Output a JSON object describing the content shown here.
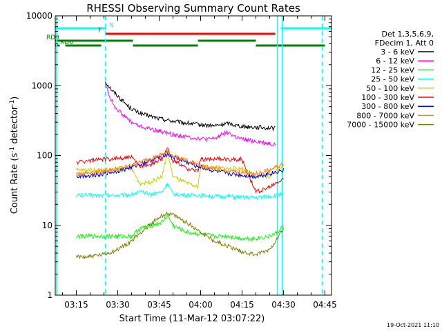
{
  "chart_data": {
    "type": "line",
    "title": "RHESSI Observing Summary Count Rates",
    "xlabel": "Start Time (11-Mar-12 03:07:22)",
    "ylabel": "Count Rate (s⁻¹ detector⁻¹)",
    "ylabel_parts": {
      "main": "Count Rate (s",
      "exp1": "-1",
      "mid": " detector",
      "exp2": "-1",
      "end": ")"
    },
    "y_scale": "log",
    "xlim": [
      "03:07:22",
      "04:47:22"
    ],
    "ylim": [
      1,
      10000
    ],
    "x_ticks": [
      "03:15",
      "03:30",
      "03:45",
      "04:00",
      "04:15",
      "04:30",
      "04:45"
    ],
    "y_ticks": [
      "1",
      "10",
      "100",
      "1000",
      "10000"
    ],
    "legend_header": [
      "Det 1,3,5,6,9,",
      "FDecim 1, Att 0"
    ],
    "legend_position": "right",
    "timestamp": "19-Oct-2021 11:10",
    "flag_labels": [
      "N",
      "F",
      "RD0",
      "RD6"
    ],
    "flags": [
      {
        "label": "N",
        "color": "#00ffff",
        "segments": [
          [
            "03:07:22",
            "03:25:50"
          ],
          [
            "04:29:00",
            "04:47:22"
          ]
        ]
      },
      {
        "label": "F",
        "color": "#ff0000",
        "segments": [
          [
            "03:25:30",
            "04:27:00"
          ]
        ]
      },
      {
        "label": "RD0",
        "color": "#008000",
        "segments": [
          [
            "03:07:22",
            "03:35:30"
          ],
          [
            "03:59:00",
            "04:20:00"
          ]
        ]
      },
      {
        "label": "RD6",
        "color": "#008000",
        "segments": [
          [
            "03:07:22",
            "03:09:00"
          ],
          [
            "03:11:00",
            "03:24:00"
          ],
          [
            "03:35:30",
            "03:59:00"
          ],
          [
            "04:20:00",
            "04:45:00"
          ]
        ]
      }
    ],
    "vlines": [
      {
        "x": "03:07:50",
        "color": "#00ffff",
        "style": "solid"
      },
      {
        "x": "03:25:30",
        "color": "#00ffff",
        "style": "dashed"
      },
      {
        "x": "04:27:45",
        "color": "#00ffff",
        "style": "solid"
      },
      {
        "x": "04:29:30",
        "color": "#00ffff",
        "style": "solid"
      },
      {
        "x": "04:44:00",
        "color": "#00ffff",
        "style": "dashed"
      }
    ],
    "series": [
      {
        "name": "3 - 6 keV",
        "color": "#000000",
        "points": [
          [
            "03:25:30",
            1150
          ],
          [
            "03:28:00",
            850
          ],
          [
            "03:31:00",
            650
          ],
          [
            "03:34:00",
            500
          ],
          [
            "03:37:00",
            420
          ],
          [
            "03:40:00",
            380
          ],
          [
            "03:45:00",
            340
          ],
          [
            "03:50:00",
            310
          ],
          [
            "03:55:00",
            290
          ],
          [
            "04:00:00",
            275
          ],
          [
            "04:05:00",
            265
          ],
          [
            "04:08:00",
            280
          ],
          [
            "04:10:00",
            290
          ],
          [
            "04:13:00",
            270
          ],
          [
            "04:16:00",
            260
          ],
          [
            "04:20:00",
            255
          ],
          [
            "04:24:00",
            250
          ],
          [
            "04:27:00",
            245
          ]
        ]
      },
      {
        "name": "6 - 12 keV",
        "color": "#ff00ff",
        "points": [
          [
            "03:25:30",
            1100
          ],
          [
            "03:27:00",
            700
          ],
          [
            "03:29:00",
            500
          ],
          [
            "03:32:00",
            380
          ],
          [
            "03:35:00",
            300
          ],
          [
            "03:38:00",
            260
          ],
          [
            "03:42:00",
            240
          ],
          [
            "03:46:00",
            220
          ],
          [
            "03:50:00",
            200
          ],
          [
            "03:55:00",
            185
          ],
          [
            "04:00:00",
            175
          ],
          [
            "04:03:00",
            170
          ],
          [
            "04:06:00",
            180
          ],
          [
            "04:08:00",
            210
          ],
          [
            "04:10:00",
            215
          ],
          [
            "04:12:00",
            190
          ],
          [
            "04:15:00",
            170
          ],
          [
            "04:20:00",
            160
          ],
          [
            "04:24:00",
            150
          ],
          [
            "04:27:00",
            145
          ]
        ]
      },
      {
        "name": "12 - 25 keV",
        "color": "#00ff00",
        "points": [
          [
            "03:15:00",
            7
          ],
          [
            "03:20:00",
            7
          ],
          [
            "03:25:00",
            7
          ],
          [
            "03:30:00",
            7
          ],
          [
            "03:35:00",
            7
          ],
          [
            "03:38:00",
            9
          ],
          [
            "03:42:00",
            10
          ],
          [
            "03:46:00",
            11
          ],
          [
            "03:48:00",
            14
          ],
          [
            "03:50:00",
            10
          ],
          [
            "03:55:00",
            8
          ],
          [
            "04:00:00",
            7.5
          ],
          [
            "04:05:00",
            7
          ],
          [
            "04:10:00",
            7
          ],
          [
            "04:15:00",
            6.5
          ],
          [
            "04:20:00",
            6.5
          ],
          [
            "04:25:00",
            7
          ],
          [
            "04:28:00",
            8
          ],
          [
            "04:30:00",
            10
          ]
        ]
      },
      {
        "name": "25 - 50 keV",
        "color": "#00ffff",
        "points": [
          [
            "03:15:00",
            27
          ],
          [
            "03:20:00",
            27
          ],
          [
            "03:25:00",
            27
          ],
          [
            "03:30:00",
            27
          ],
          [
            "03:35:00",
            28
          ],
          [
            "03:38:00",
            30
          ],
          [
            "03:42:00",
            28
          ],
          [
            "03:46:00",
            30
          ],
          [
            "03:48:00",
            40
          ],
          [
            "03:50:00",
            28
          ],
          [
            "03:55:00",
            27
          ],
          [
            "04:00:00",
            27
          ],
          [
            "04:05:00",
            26
          ],
          [
            "04:10:00",
            26
          ],
          [
            "04:15:00",
            25
          ],
          [
            "04:20:00",
            25
          ],
          [
            "04:25:00",
            26
          ],
          [
            "04:30:00",
            28
          ]
        ]
      },
      {
        "name": "50 - 100 keV",
        "color": "#cccc00",
        "points": [
          [
            "03:15:00",
            62
          ],
          [
            "03:20:00",
            62
          ],
          [
            "03:25:00",
            62
          ],
          [
            "03:30:00",
            63
          ],
          [
            "03:35:00",
            64
          ],
          [
            "03:38:00",
            40
          ],
          [
            "03:42:00",
            42
          ],
          [
            "03:46:00",
            50
          ],
          [
            "03:48:00",
            110
          ],
          [
            "03:50:00",
            50
          ],
          [
            "03:55:00",
            40
          ],
          [
            "03:59:00",
            35
          ],
          [
            "04:00:00",
            70
          ],
          [
            "04:05:00",
            68
          ],
          [
            "04:10:00",
            65
          ],
          [
            "04:15:00",
            65
          ],
          [
            "04:20:00",
            50
          ],
          [
            "04:25:00",
            50
          ],
          [
            "04:30:00",
            75
          ]
        ]
      },
      {
        "name": "100 - 300 keV",
        "color": "#ff0000",
        "points": [
          [
            "03:15:00",
            80
          ],
          [
            "03:20:00",
            85
          ],
          [
            "03:25:00",
            88
          ],
          [
            "03:30:00",
            92
          ],
          [
            "03:35:00",
            95
          ],
          [
            "03:38:00",
            70
          ],
          [
            "03:42:00",
            75
          ],
          [
            "03:46:00",
            90
          ],
          [
            "03:48:00",
            125
          ],
          [
            "03:50:00",
            85
          ],
          [
            "03:55:00",
            65
          ],
          [
            "03:59:00",
            60
          ],
          [
            "04:00:00",
            88
          ],
          [
            "04:05:00",
            90
          ],
          [
            "04:10:00",
            88
          ],
          [
            "04:15:00",
            88
          ],
          [
            "04:20:00",
            30
          ],
          [
            "04:25:00",
            35
          ],
          [
            "04:27:00",
            40
          ],
          [
            "04:30:00",
            45
          ]
        ]
      },
      {
        "name": "300 - 800 keV",
        "color": "#0000ff",
        "points": [
          [
            "03:15:00",
            50
          ],
          [
            "03:20:00",
            52
          ],
          [
            "03:25:00",
            55
          ],
          [
            "03:30:00",
            60
          ],
          [
            "03:35:00",
            68
          ],
          [
            "03:40:00",
            80
          ],
          [
            "03:45:00",
            95
          ],
          [
            "03:48:00",
            105
          ],
          [
            "03:50:00",
            95
          ],
          [
            "03:55:00",
            80
          ],
          [
            "04:00:00",
            68
          ],
          [
            "04:05:00",
            60
          ],
          [
            "04:10:00",
            55
          ],
          [
            "04:15:00",
            52
          ],
          [
            "04:20:00",
            50
          ],
          [
            "04:25:00",
            55
          ],
          [
            "04:30:00",
            62
          ]
        ]
      },
      {
        "name": "800 - 7000 keV",
        "color": "#ff8000",
        "points": [
          [
            "03:15:00",
            55
          ],
          [
            "03:20:00",
            57
          ],
          [
            "03:25:00",
            60
          ],
          [
            "03:30:00",
            65
          ],
          [
            "03:35:00",
            72
          ],
          [
            "03:40:00",
            85
          ],
          [
            "03:45:00",
            100
          ],
          [
            "03:48:00",
            110
          ],
          [
            "03:50:00",
            100
          ],
          [
            "03:55:00",
            85
          ],
          [
            "04:00:00",
            72
          ],
          [
            "04:05:00",
            65
          ],
          [
            "04:10:00",
            60
          ],
          [
            "04:15:00",
            57
          ],
          [
            "04:20:00",
            55
          ],
          [
            "04:25:00",
            62
          ],
          [
            "04:30:00",
            75
          ]
        ]
      },
      {
        "name": "7000 - 15000 keV",
        "color": "#808000",
        "points": [
          [
            "03:15:00",
            3.5
          ],
          [
            "03:20:00",
            3.6
          ],
          [
            "03:25:00",
            3.8
          ],
          [
            "03:30:00",
            4.5
          ],
          [
            "03:35:00",
            6
          ],
          [
            "03:40:00",
            9
          ],
          [
            "03:45:00",
            13
          ],
          [
            "03:48:00",
            15
          ],
          [
            "03:50:00",
            14
          ],
          [
            "03:55:00",
            11
          ],
          [
            "04:00:00",
            8
          ],
          [
            "04:05:00",
            6
          ],
          [
            "04:10:00",
            5
          ],
          [
            "04:15:00",
            4.2
          ],
          [
            "04:20:00",
            3.8
          ],
          [
            "04:25:00",
            4.5
          ],
          [
            "04:30:00",
            9
          ]
        ]
      }
    ]
  }
}
